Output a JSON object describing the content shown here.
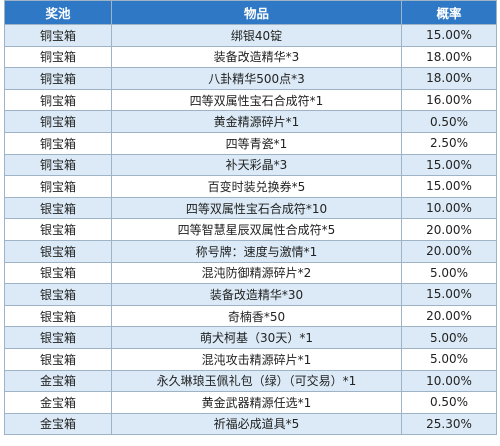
{
  "table": {
    "headers": [
      "奖池",
      "物品",
      "概率"
    ],
    "rows": [
      {
        "pool": "铜宝箱",
        "item": "绑银40锭",
        "prob": "15.00%"
      },
      {
        "pool": "铜宝箱",
        "item": "装备改造精华*3",
        "prob": "18.00%"
      },
      {
        "pool": "铜宝箱",
        "item": "八卦精华500点*3",
        "prob": "18.00%"
      },
      {
        "pool": "铜宝箱",
        "item": "四等双属性宝石合成符*1",
        "prob": "16.00%"
      },
      {
        "pool": "铜宝箱",
        "item": "黄金精源碎片*1",
        "prob": "0.50%"
      },
      {
        "pool": "铜宝箱",
        "item": "四等青瓷*1",
        "prob": "2.50%"
      },
      {
        "pool": "铜宝箱",
        "item": "补天彩晶*3",
        "prob": "15.00%"
      },
      {
        "pool": "铜宝箱",
        "item": "百变时装兑换券*5",
        "prob": "15.00%"
      },
      {
        "pool": "银宝箱",
        "item": "四等双属性宝石合成符*10",
        "prob": "10.00%"
      },
      {
        "pool": "银宝箱",
        "item": "四等智慧星辰双属性合成符*5",
        "prob": "20.00%"
      },
      {
        "pool": "银宝箱",
        "item": "称号牌：速度与激情*1",
        "prob": "20.00%"
      },
      {
        "pool": "银宝箱",
        "item": "混沌防御精源碎片*2",
        "prob": "5.00%"
      },
      {
        "pool": "银宝箱",
        "item": "装备改造精华*30",
        "prob": "15.00%"
      },
      {
        "pool": "银宝箱",
        "item": "奇楠香*50",
        "prob": "20.00%"
      },
      {
        "pool": "银宝箱",
        "item": "萌犬柯基（30天）*1",
        "prob": "5.00%"
      },
      {
        "pool": "银宝箱",
        "item": "混沌攻击精源碎片*1",
        "prob": "5.00%"
      },
      {
        "pool": "金宝箱",
        "item": "永久琳琅玉佩礼包（绿）（可交易）*1",
        "prob": "10.00%"
      },
      {
        "pool": "金宝箱",
        "item": "黄金武器精源任选*1",
        "prob": "0.50%"
      },
      {
        "pool": "金宝箱",
        "item": "祈福必成道具*5",
        "prob": "25.30%"
      }
    ]
  }
}
